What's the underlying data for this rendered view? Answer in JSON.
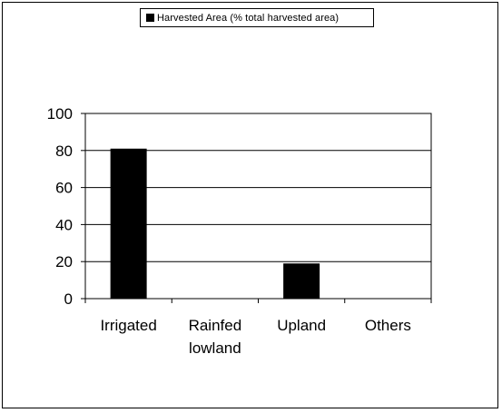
{
  "chart_data": {
    "type": "bar",
    "categories": [
      [
        "Irrigated"
      ],
      [
        "Rainfed",
        "lowland"
      ],
      [
        "Upland"
      ],
      [
        "Others"
      ]
    ],
    "series": [
      {
        "name": "Harvested Area (% total harvested area)",
        "values": [
          81,
          0,
          19,
          0
        ],
        "color": "#000000"
      }
    ],
    "ylim": [
      0,
      100
    ],
    "yticks": [
      0,
      20,
      40,
      60,
      80,
      100
    ],
    "grid": true,
    "legend": "top-center",
    "xlabel": "",
    "ylabel": "",
    "title": ""
  }
}
